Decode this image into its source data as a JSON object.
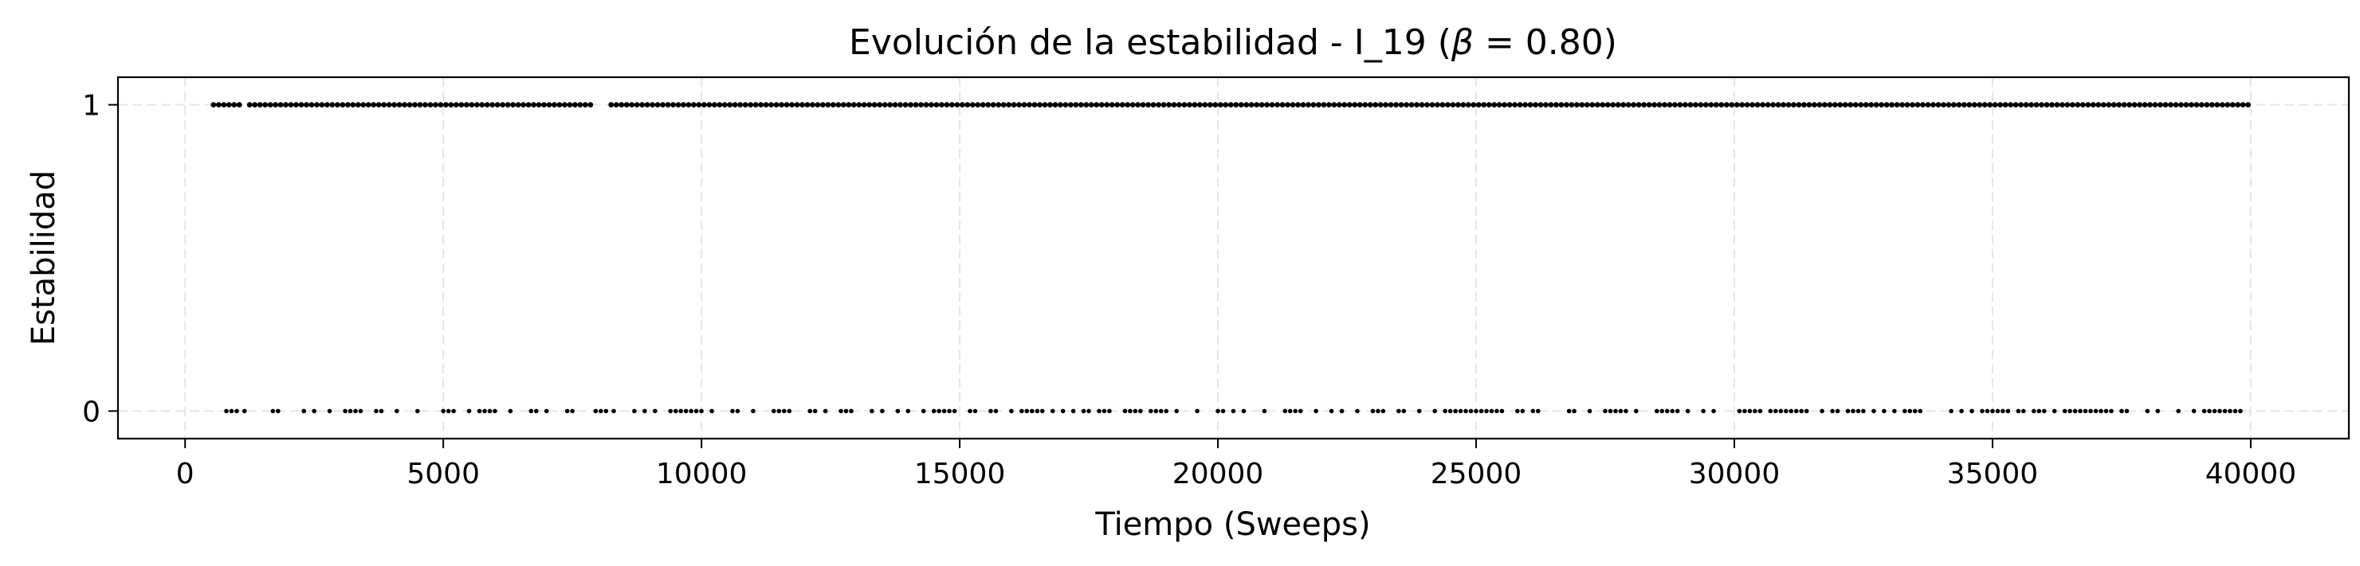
{
  "chart_data": {
    "type": "scatter",
    "title": "Evolución de la estabilidad - I_19 (",
    "title_symbol": "β",
    "title_rest": " = 0.80)",
    "xlabel": "Tiempo (Sweeps)",
    "ylabel": "Estabilidad",
    "xlim": [
      -1300,
      41900
    ],
    "ylim": [
      -0.09,
      1.09
    ],
    "x_ticks": [
      0,
      5000,
      10000,
      15000,
      20000,
      25000,
      30000,
      35000,
      40000
    ],
    "x_tick_labels": [
      "0",
      "5000",
      "10000",
      "15000",
      "20000",
      "25000",
      "30000",
      "35000",
      "40000"
    ],
    "y_ticks": [
      0,
      1
    ],
    "y_tick_labels": [
      "0",
      "1"
    ],
    "grid": true,
    "marker_color": "#000000",
    "series": [
      {
        "x_start": 550,
        "x_end": 40000,
        "ones_interval": 100,
        "zero_x": [
          800,
          900,
          1000,
          1150,
          1700,
          1800,
          2300,
          2500,
          2800,
          3100,
          3200,
          3300,
          3400,
          3700,
          3800,
          4100,
          4500,
          5000,
          5100,
          5200,
          5500,
          5700,
          5800,
          5900,
          6000,
          6300,
          6700,
          6800,
          7000,
          7400,
          7500,
          7950,
          8050,
          8150,
          8300,
          8700,
          8900,
          9100,
          9400,
          9500,
          9600,
          9700,
          9800,
          9900,
          10000,
          10200,
          10600,
          10700,
          11000,
          11400,
          11500,
          11600,
          11700,
          12100,
          12200,
          12400,
          12700,
          12800,
          12900,
          13300,
          13500,
          13800,
          14000,
          14300,
          14500,
          14600,
          14700,
          14800,
          14900,
          15200,
          15300,
          15600,
          15700,
          16000,
          16200,
          16300,
          16400,
          16500,
          16600,
          16800,
          17000,
          17200,
          17400,
          17500,
          17700,
          17800,
          17900,
          18200,
          18300,
          18400,
          18500,
          18700,
          18800,
          18900,
          19000,
          19200,
          19600,
          20000,
          20100,
          20300,
          20500,
          20900,
          21300,
          21400,
          21500,
          21600,
          21900,
          22200,
          22400,
          22700,
          23000,
          23100,
          23200,
          23500,
          23600,
          23900,
          24200,
          24400,
          24500,
          24600,
          24700,
          24800,
          24900,
          25000,
          25100,
          25200,
          25300,
          25400,
          25500,
          25800,
          25900,
          26100,
          26200,
          26800,
          26900,
          27200,
          27500,
          27600,
          27700,
          27800,
          27900,
          28100,
          28500,
          28600,
          28700,
          28800,
          28900,
          29100,
          29400,
          29600,
          30100,
          30200,
          30300,
          30400,
          30500,
          30700,
          30800,
          30900,
          31000,
          31100,
          31200,
          31300,
          31400,
          31700,
          31900,
          32000,
          32200,
          32300,
          32400,
          32500,
          32700,
          32900,
          33100,
          33300,
          33400,
          33500,
          33600,
          34200,
          34400,
          34600,
          34800,
          34900,
          35000,
          35100,
          35200,
          35300,
          35500,
          35600,
          35800,
          35900,
          36000,
          36200,
          36400,
          36500,
          36600,
          36700,
          36800,
          36900,
          37000,
          37100,
          37200,
          37300,
          37500,
          37600,
          38000,
          38200,
          38600,
          38900,
          39100,
          39200,
          39300,
          39400,
          39500,
          39600,
          39700,
          39800
        ]
      }
    ]
  }
}
